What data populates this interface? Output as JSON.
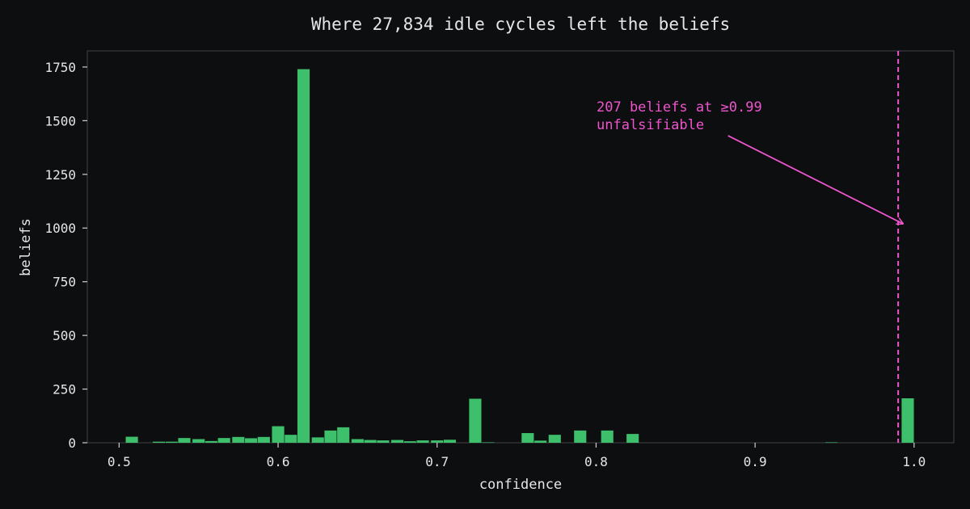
{
  "chart_data": {
    "type": "bar",
    "title": "Where 27,834 idle cycles left the beliefs",
    "xlabel": "confidence",
    "ylabel": "beliefs",
    "xlim": [
      0.48,
      1.025
    ],
    "ylim": [
      0,
      1825
    ],
    "xticks": [
      0.5,
      0.6,
      0.7,
      0.8,
      0.9,
      1.0
    ],
    "xtick_labels": [
      "0.5",
      "0.6",
      "0.7",
      "0.8",
      "0.9",
      "1.0"
    ],
    "yticks": [
      0,
      250,
      500,
      750,
      1000,
      1250,
      1500,
      1750
    ],
    "ytick_labels": [
      "0",
      "250",
      "500",
      "750",
      "1000",
      "1250",
      "1500",
      "1750"
    ],
    "bin_width": 0.0083,
    "bins": [
      {
        "x": 0.508,
        "count": 28
      },
      {
        "x": 0.525,
        "count": 5
      },
      {
        "x": 0.533,
        "count": 5
      },
      {
        "x": 0.541,
        "count": 22
      },
      {
        "x": 0.55,
        "count": 17
      },
      {
        "x": 0.558,
        "count": 8
      },
      {
        "x": 0.566,
        "count": 22
      },
      {
        "x": 0.575,
        "count": 27
      },
      {
        "x": 0.583,
        "count": 21
      },
      {
        "x": 0.591,
        "count": 27
      },
      {
        "x": 0.6,
        "count": 77
      },
      {
        "x": 0.608,
        "count": 37
      },
      {
        "x": 0.616,
        "count": 1740
      },
      {
        "x": 0.625,
        "count": 25
      },
      {
        "x": 0.633,
        "count": 57
      },
      {
        "x": 0.641,
        "count": 72
      },
      {
        "x": 0.65,
        "count": 17
      },
      {
        "x": 0.658,
        "count": 13
      },
      {
        "x": 0.666,
        "count": 11
      },
      {
        "x": 0.675,
        "count": 13
      },
      {
        "x": 0.683,
        "count": 7
      },
      {
        "x": 0.691,
        "count": 11
      },
      {
        "x": 0.7,
        "count": 11
      },
      {
        "x": 0.708,
        "count": 14
      },
      {
        "x": 0.724,
        "count": 205
      },
      {
        "x": 0.732,
        "count": 2
      },
      {
        "x": 0.757,
        "count": 45
      },
      {
        "x": 0.765,
        "count": 10
      },
      {
        "x": 0.774,
        "count": 37
      },
      {
        "x": 0.79,
        "count": 57
      },
      {
        "x": 0.807,
        "count": 57
      },
      {
        "x": 0.823,
        "count": 41
      },
      {
        "x": 0.948,
        "count": 2
      },
      {
        "x": 0.996,
        "count": 207
      }
    ],
    "bar_color": "#3dbf6b",
    "reference_line": {
      "x": 0.99,
      "style": "dashed",
      "color": "#ee55cc"
    },
    "annotation": {
      "lines": [
        "207 beliefs at ≥0.99",
        "unfalsifiable"
      ],
      "color": "#ee55cc",
      "arrow_target": {
        "x": 0.993,
        "y": 1020
      },
      "arrow_source": {
        "x": 0.883,
        "y": 1430
      }
    },
    "grid": false,
    "legend": "none"
  }
}
